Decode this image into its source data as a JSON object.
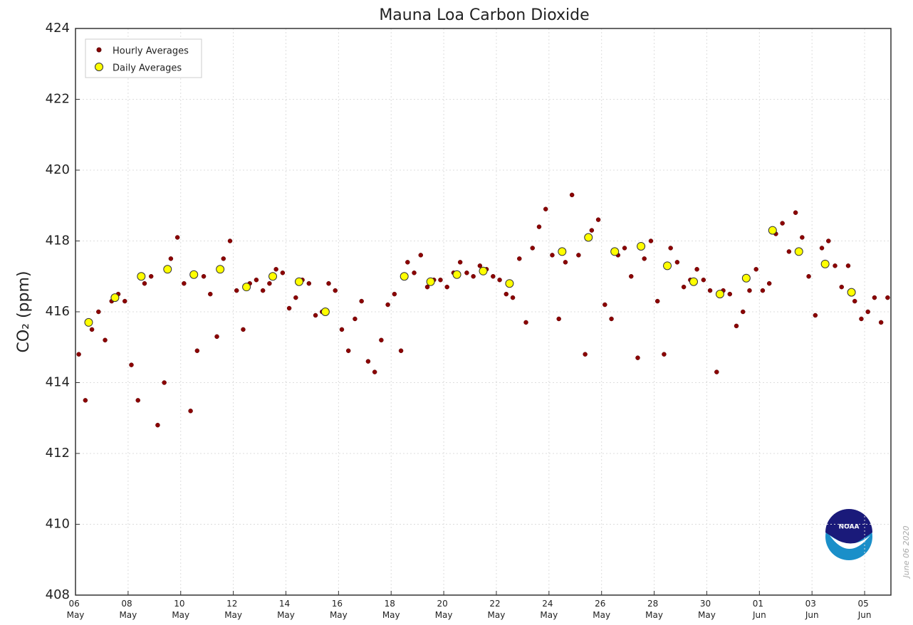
{
  "chart_data": {
    "type": "scatter",
    "title": "Mauna Loa Carbon Dioxide",
    "ylabel": "CO₂ (ppm)",
    "annotation": "June 06 2020",
    "logo_text": "NOAA",
    "xlim": [
      0,
      31
    ],
    "ylim": [
      408,
      424
    ],
    "yticks": [
      408,
      410,
      412,
      414,
      416,
      418,
      420,
      422,
      424
    ],
    "xticks": [
      {
        "value": 0,
        "label": "06 May"
      },
      {
        "value": 2,
        "label": "08 May"
      },
      {
        "value": 4,
        "label": "10 May"
      },
      {
        "value": 6,
        "label": "12 May"
      },
      {
        "value": 8,
        "label": "14 May"
      },
      {
        "value": 10,
        "label": "16 May"
      },
      {
        "value": 12,
        "label": "18 May"
      },
      {
        "value": 14,
        "label": "20 May"
      },
      {
        "value": 16,
        "label": "22 May"
      },
      {
        "value": 18,
        "label": "24 May"
      },
      {
        "value": 20,
        "label": "26 May"
      },
      {
        "value": 22,
        "label": "28 May"
      },
      {
        "value": 24,
        "label": "30 May"
      },
      {
        "value": 26,
        "label": "01 Jun"
      },
      {
        "value": 28,
        "label": "03 Jun"
      },
      {
        "value": 30,
        "label": "05 Jun"
      }
    ],
    "grid": true,
    "legend": "upper left",
    "series": [
      {
        "name": "Hourly Averages",
        "color": "#8b0000",
        "x": [
          0.125,
          0.375,
          0.625,
          0.875,
          1.125,
          1.375,
          1.625,
          1.875,
          2.125,
          2.375,
          2.625,
          2.875,
          3.125,
          3.375,
          3.625,
          3.875,
          4.125,
          4.375,
          4.625,
          4.875,
          5.125,
          5.375,
          5.625,
          5.875,
          6.125,
          6.375,
          6.625,
          6.875,
          7.125,
          7.375,
          7.625,
          7.875,
          8.125,
          8.375,
          8.625,
          8.875,
          9.125,
          9.375,
          9.625,
          9.875,
          10.125,
          10.375,
          10.625,
          10.875,
          11.125,
          11.375,
          11.625,
          11.875,
          12.125,
          12.375,
          12.625,
          12.875,
          13.125,
          13.375,
          13.625,
          13.875,
          14.125,
          14.375,
          14.625,
          14.875,
          15.125,
          15.375,
          15.625,
          15.875,
          16.125,
          16.375,
          16.625,
          16.875,
          17.125,
          17.375,
          17.625,
          17.875,
          18.125,
          18.375,
          18.625,
          18.875,
          19.125,
          19.375,
          19.625,
          19.875,
          20.125,
          20.375,
          20.625,
          20.875,
          21.125,
          21.375,
          21.625,
          21.875,
          22.125,
          22.375,
          22.625,
          22.875,
          23.125,
          23.375,
          23.625,
          23.875,
          24.125,
          24.375,
          24.625,
          24.875,
          25.125,
          25.375,
          25.625,
          25.875,
          26.125,
          26.375,
          26.625,
          26.875,
          27.125,
          27.375,
          27.625,
          27.875,
          28.125,
          28.375,
          28.625,
          28.875,
          29.125,
          29.375,
          29.625,
          29.875,
          30.125,
          30.375,
          30.625,
          30.875
        ],
        "values": [
          414.8,
          413.5,
          415.5,
          416.0,
          415.2,
          416.3,
          416.5,
          416.3,
          414.5,
          413.5,
          416.8,
          417.0,
          412.8,
          414.0,
          417.5,
          418.1,
          416.8,
          413.2,
          414.9,
          417.0,
          416.5,
          415.3,
          417.5,
          418.0,
          416.6,
          415.5,
          416.8,
          416.9,
          416.6,
          416.8,
          417.2,
          417.1,
          416.1,
          416.4,
          416.9,
          416.8,
          415.9,
          416.0,
          416.8,
          416.6,
          415.5,
          414.9,
          415.8,
          416.3,
          414.6,
          414.3,
          415.2,
          416.2,
          416.5,
          414.9,
          417.4,
          417.1,
          417.6,
          416.7,
          416.9,
          416.9,
          416.7,
          417.1,
          417.4,
          417.1,
          417.0,
          417.3,
          417.2,
          417.0,
          416.9,
          416.5,
          416.4,
          417.5,
          415.7,
          417.8,
          418.4,
          418.9,
          417.6,
          415.8,
          417.4,
          419.3,
          417.6,
          414.8,
          418.3,
          418.6,
          416.2,
          415.8,
          417.6,
          417.8,
          417.0,
          414.7,
          417.5,
          418.0,
          416.3,
          414.8,
          417.8,
          417.4,
          416.7,
          416.9,
          417.2,
          416.9,
          416.6,
          414.3,
          416.6,
          416.5,
          415.6,
          416.0,
          416.6,
          417.2,
          416.6,
          416.8,
          418.2,
          418.5,
          417.7,
          418.8,
          418.1,
          417.0,
          415.9,
          417.8,
          418.0,
          417.3,
          416.7,
          417.3,
          416.3,
          415.8,
          416.0,
          416.4,
          415.7,
          416.4
        ]
      },
      {
        "name": "Daily Averages",
        "color": "#ffff00",
        "x": [
          0.5,
          1.5,
          2.5,
          3.5,
          4.5,
          5.5,
          6.5,
          7.5,
          8.5,
          9.5,
          12.5,
          13.5,
          14.5,
          15.5,
          16.5,
          18.5,
          19.5,
          20.5,
          21.5,
          22.5,
          23.5,
          24.5,
          25.5,
          26.5,
          27.5,
          28.5,
          29.5
        ],
        "values": [
          415.7,
          416.4,
          417.0,
          417.2,
          417.05,
          417.2,
          416.7,
          417.0,
          416.85,
          416.0,
          417.0,
          416.85,
          417.05,
          417.15,
          416.8,
          417.7,
          418.1,
          417.7,
          417.85,
          417.3,
          416.85,
          416.5,
          416.95,
          418.3,
          417.7,
          417.35,
          416.55
        ]
      }
    ]
  }
}
